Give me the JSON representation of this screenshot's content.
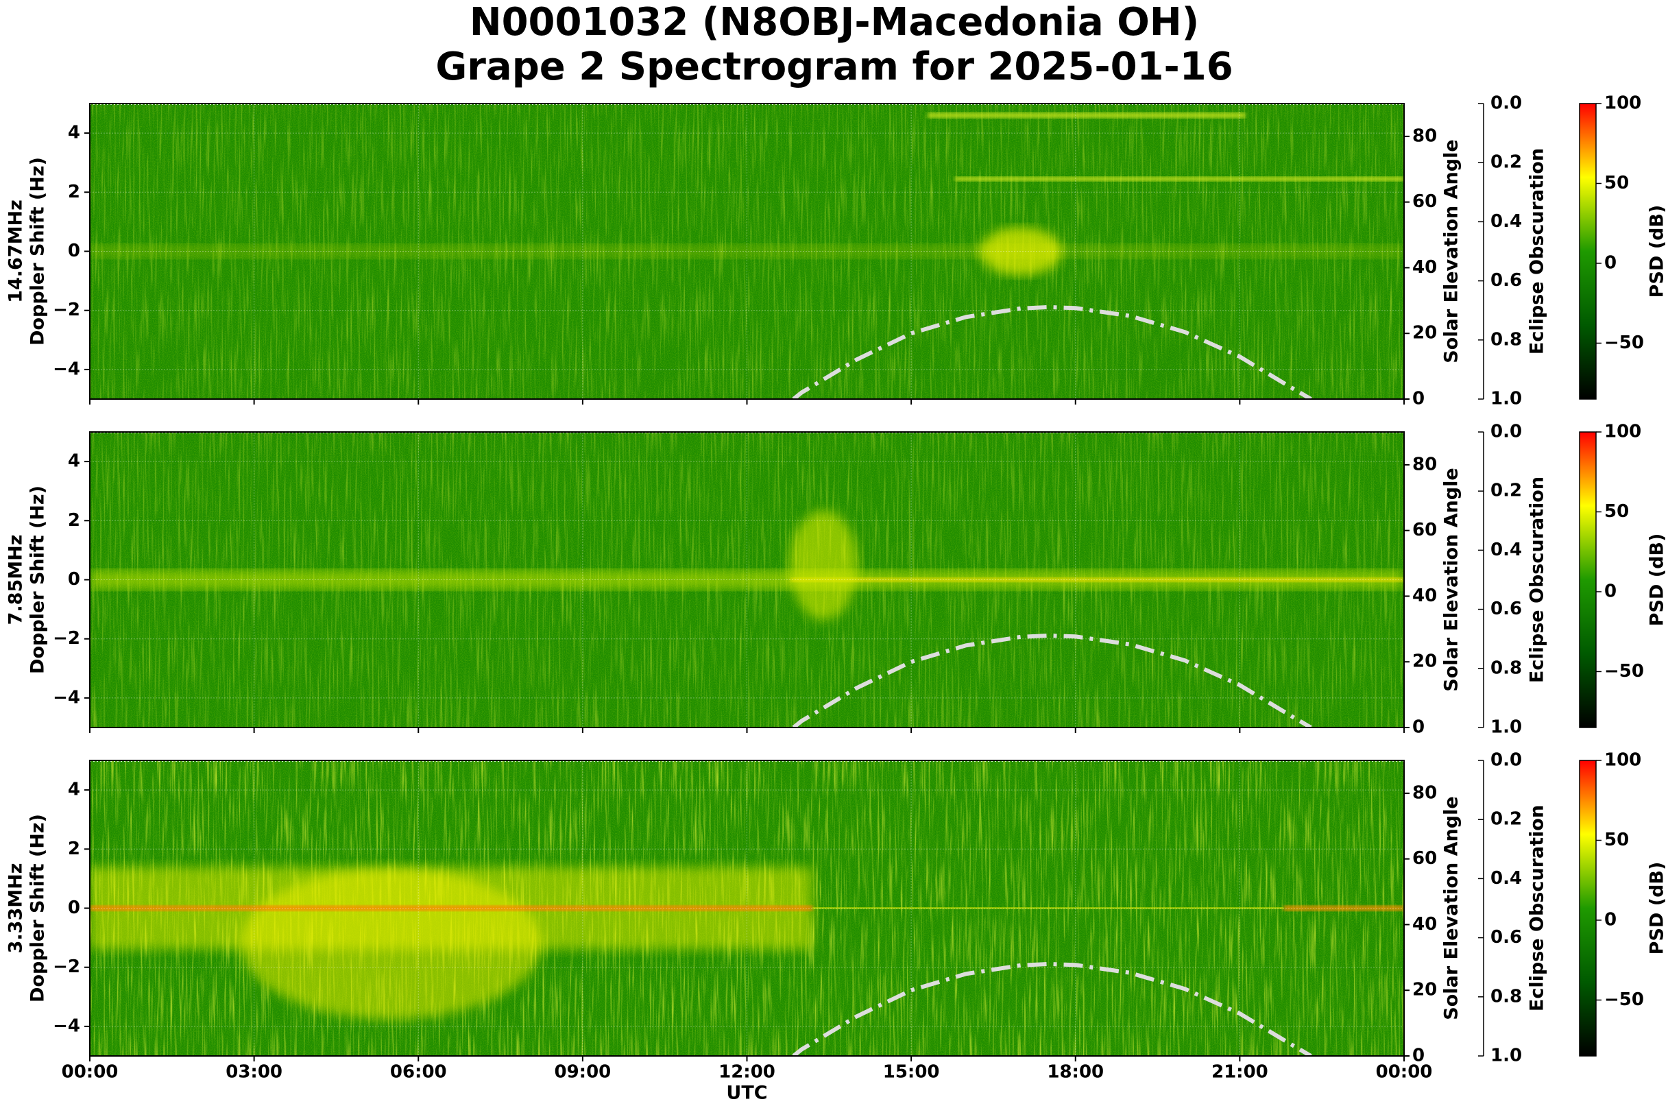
{
  "title": [
    "N0001032 (N8OBJ-Macedonia OH)",
    "Grape 2 Spectrogram for 2025-01-16"
  ],
  "chart_data": [
    {
      "type": "spectrogram",
      "ylabel": [
        "14.67MHz",
        "Doppler Shift (Hz)"
      ],
      "xlim": [
        0,
        24
      ],
      "xticks": [
        0,
        3,
        6,
        9,
        12,
        15,
        18,
        21,
        24
      ],
      "ylim": [
        -5,
        5
      ],
      "yticks": [
        {
          "value": -4,
          "label": "−4"
        },
        {
          "value": -2,
          "label": "−2"
        },
        0,
        2,
        4
      ],
      "y2label": "Solar Elevation Angle",
      "y2lim": [
        0,
        90
      ],
      "y2ticks": [
        0,
        20,
        40,
        60,
        80
      ],
      "y3label": "Eclipse Obscuration",
      "y3lim": [
        1,
        0
      ],
      "y3ticks": [
        {
          "value": 0,
          "label": "0.0"
        },
        0.2,
        0.4,
        0.6,
        0.8,
        {
          "value": 1,
          "label": "1.0"
        }
      ],
      "colorbar": {
        "label": "PSD (dB)",
        "lim": [
          -85,
          100
        ],
        "ticks": [
          {
            "value": -50,
            "label": "−50"
          },
          0,
          50,
          100
        ],
        "colors": [
          "#000000",
          "#005a00",
          "#1f9a00",
          "#ffff00",
          "#ff0000"
        ]
      },
      "grid": true,
      "x": [
        12.85,
        13,
        14,
        15,
        16,
        17,
        17.5,
        18,
        19,
        20,
        21,
        22,
        22.3
      ],
      "series": [
        {
          "axis": "y2",
          "color": "#dddddd",
          "values": [
            0,
            2,
            12,
            20,
            25,
            27.6,
            28,
            27.7,
            25.3,
            20.4,
            12.9,
            2.9,
            0
          ]
        }
      ]
    },
    {
      "type": "spectrogram",
      "ylabel": [
        "7.85MHz",
        "Doppler Shift (Hz)"
      ],
      "xlim": [
        0,
        24
      ],
      "xticks": [
        0,
        3,
        6,
        9,
        12,
        15,
        18,
        21,
        24
      ],
      "ylim": [
        -5,
        5
      ],
      "yticks": [
        {
          "value": -4,
          "label": "−4"
        },
        {
          "value": -2,
          "label": "−2"
        },
        0,
        2,
        4
      ],
      "y2label": "Solar Elevation Angle",
      "y2lim": [
        0,
        90
      ],
      "y2ticks": [
        0,
        20,
        40,
        60,
        80
      ],
      "y3label": "Eclipse Obscuration",
      "y3lim": [
        1,
        0
      ],
      "y3ticks": [
        {
          "value": 0,
          "label": "0.0"
        },
        0.2,
        0.4,
        0.6,
        0.8,
        {
          "value": 1,
          "label": "1.0"
        }
      ],
      "colorbar": {
        "label": "PSD (dB)",
        "lim": [
          -85,
          100
        ],
        "ticks": [
          {
            "value": -50,
            "label": "−50"
          },
          0,
          50,
          100
        ],
        "colors": [
          "#000000",
          "#005a00",
          "#1f9a00",
          "#ffff00",
          "#ff0000"
        ]
      },
      "grid": true,
      "x": [
        12.85,
        13,
        14,
        15,
        16,
        17,
        17.5,
        18,
        19,
        20,
        21,
        22,
        22.3
      ],
      "series": [
        {
          "axis": "y2",
          "color": "#dddddd",
          "values": [
            0,
            2,
            12,
            20,
            25,
            27.6,
            28,
            27.7,
            25.3,
            20.4,
            12.9,
            2.9,
            0
          ]
        }
      ]
    },
    {
      "type": "spectrogram",
      "ylabel": [
        "3.33MHz",
        "Doppler Shift (Hz)"
      ],
      "xlabel": "UTC",
      "xlim": [
        0,
        24
      ],
      "xticks": [
        {
          "value": 0,
          "label": "00:00"
        },
        {
          "value": 3,
          "label": "03:00"
        },
        {
          "value": 6,
          "label": "06:00"
        },
        {
          "value": 9,
          "label": "09:00"
        },
        {
          "value": 12,
          "label": "12:00"
        },
        {
          "value": 15,
          "label": "15:00"
        },
        {
          "value": 18,
          "label": "18:00"
        },
        {
          "value": 21,
          "label": "21:00"
        },
        {
          "value": 24,
          "label": "00:00"
        }
      ],
      "ylim": [
        -5,
        5
      ],
      "yticks": [
        {
          "value": -4,
          "label": "−4"
        },
        {
          "value": -2,
          "label": "−2"
        },
        0,
        2,
        4
      ],
      "y2label": "Solar Elevation Angle",
      "y2lim": [
        0,
        90
      ],
      "y2ticks": [
        0,
        20,
        40,
        60,
        80
      ],
      "y3label": "Eclipse Obscuration",
      "y3lim": [
        1,
        0
      ],
      "y3ticks": [
        {
          "value": 0,
          "label": "0.0"
        },
        0.2,
        0.4,
        0.6,
        0.8,
        {
          "value": 1,
          "label": "1.0"
        }
      ],
      "colorbar": {
        "label": "PSD (dB)",
        "lim": [
          -85,
          100
        ],
        "ticks": [
          {
            "value": -50,
            "label": "−50"
          },
          0,
          50,
          100
        ],
        "colors": [
          "#000000",
          "#005a00",
          "#1f9a00",
          "#ffff00",
          "#ff0000"
        ]
      },
      "grid": true,
      "x": [
        12.85,
        13,
        14,
        15,
        16,
        17,
        17.5,
        18,
        19,
        20,
        21,
        22,
        22.3
      ],
      "series": [
        {
          "axis": "y2",
          "color": "#dddddd",
          "values": [
            0,
            2,
            12,
            20,
            25,
            27.6,
            28,
            27.7,
            25.3,
            20.4,
            12.9,
            2.9,
            0
          ]
        }
      ]
    }
  ]
}
